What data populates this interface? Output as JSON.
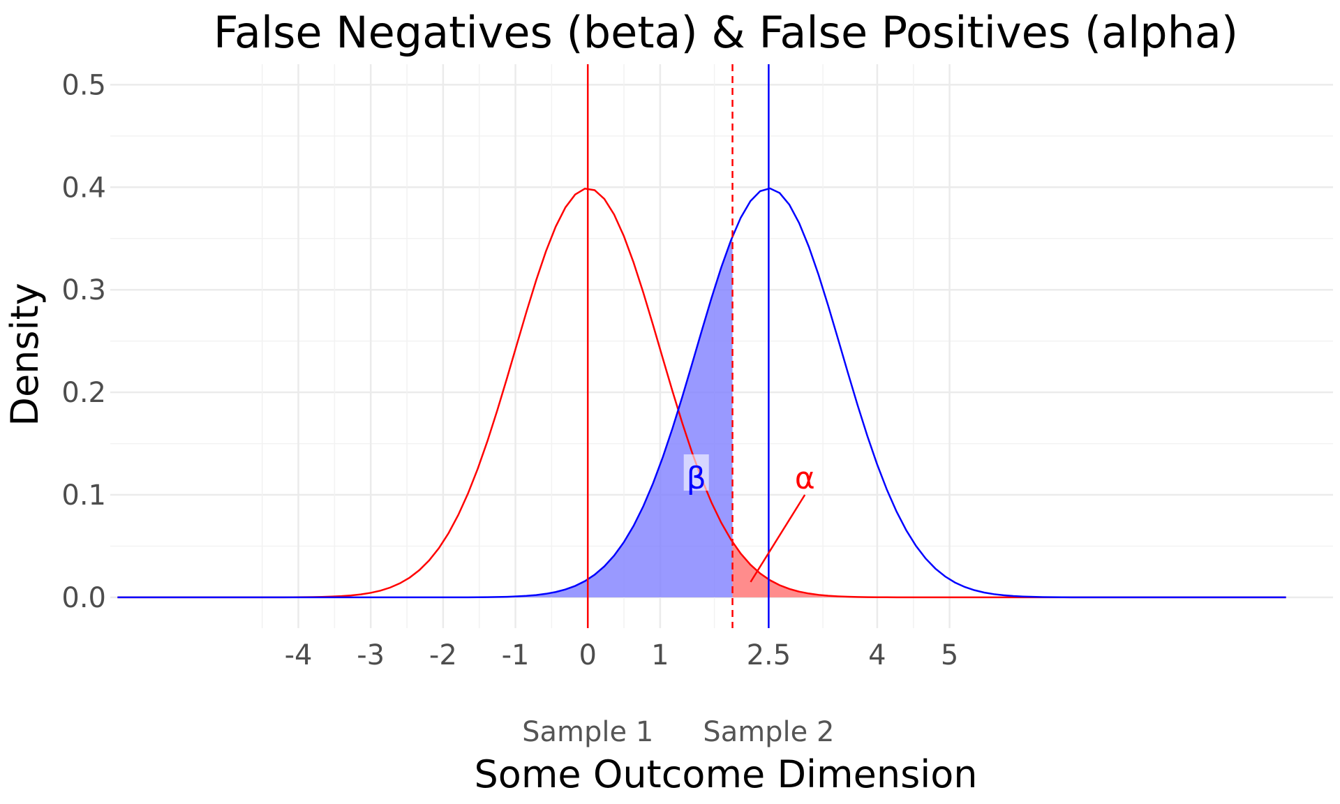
{
  "chart_data": {
    "type": "line",
    "title": "False Negatives (beta) & False Positives (alpha)",
    "xlabel": "Some Outcome Dimension",
    "ylabel": "Density",
    "x_tick_labels": [
      {
        "value": -4,
        "label": "-4"
      },
      {
        "value": -3,
        "label": "-3"
      },
      {
        "value": -2,
        "label": "-2"
      },
      {
        "value": -1,
        "label": "-1"
      },
      {
        "value": 0,
        "label": "0"
      },
      {
        "value": 1,
        "label": "1"
      },
      {
        "value": 2.5,
        "label": "2.5"
      },
      {
        "value": 4,
        "label": "4"
      },
      {
        "value": 5,
        "label": "5"
      }
    ],
    "y_tick_labels": [
      {
        "value": 0.0,
        "label": "0.0"
      },
      {
        "value": 0.1,
        "label": "0.1"
      },
      {
        "value": 0.2,
        "label": "0.2"
      },
      {
        "value": 0.3,
        "label": "0.3"
      },
      {
        "value": 0.4,
        "label": "0.4"
      },
      {
        "value": 0.5,
        "label": "0.5"
      }
    ],
    "sample_labels": [
      {
        "x": 0,
        "label": "Sample 1"
      },
      {
        "x": 2.5,
        "label": "Sample 2"
      }
    ],
    "xlim": [
      -6.6,
      10.3
    ],
    "ylim": [
      -0.03,
      0.52
    ],
    "grid": true,
    "series": [
      {
        "mean": 0,
        "sd": 1,
        "x_range": [
          -6.5,
          9.65
        ],
        "color": "#ff0000"
      },
      {
        "mean": 2.5,
        "sd": 1,
        "x_range": [
          -6.5,
          9.65
        ],
        "color": "#0000ff"
      }
    ],
    "critical_value": 2,
    "critical_line_color": "#ff0000",
    "mean_lines": [
      {
        "x": 0,
        "color": "#ff0000"
      },
      {
        "x": 2.5,
        "color": "#0000ff"
      }
    ],
    "shaded_regions": [
      {
        "curve_mean": 2.5,
        "from": -6.5,
        "to": 2,
        "color": "#7f7fff",
        "opacity": 0.8
      },
      {
        "curve_mean": 0,
        "from": 2,
        "to": 9.65,
        "color": "#ff7f7f",
        "opacity": 0.9
      }
    ],
    "annotations": [
      {
        "text": "β",
        "x": 1.5,
        "y": 0.117,
        "color": "#0000ff"
      },
      {
        "text": "α",
        "x": 3.0,
        "y": 0.117,
        "color": "#ff0000",
        "arrow_from": [
          3.0,
          0.1
        ],
        "arrow_to": [
          2.25,
          0.015
        ]
      }
    ]
  }
}
